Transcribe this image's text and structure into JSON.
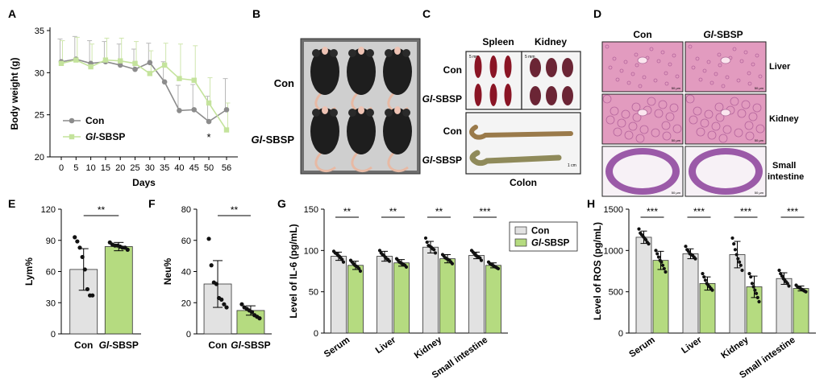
{
  "colors": {
    "con": "#e2e2e2",
    "gl": "#b5db80",
    "con_line": "#8c8c8c",
    "gl_line": "#c4e39c",
    "mouse": "#1e1e1e",
    "spleen": "#8a1525",
    "kidney": "#6b2535",
    "colon": "#9a7a4a",
    "he_pink": "#e29bbf",
    "he_bg": "#f1c8d8",
    "he_purple": "#9b5aa8"
  },
  "panel_letters": {
    "A": "A",
    "B": "B",
    "C": "C",
    "D": "D",
    "E": "E",
    "F": "F",
    "G": "G",
    "H": "H"
  },
  "groups": {
    "con": "Con",
    "gl_prefix": "Gl",
    "gl_suffix": "-SBSP"
  },
  "panel_B": {
    "row_labels": [
      "Con",
      "Gl-SBSP"
    ]
  },
  "panel_C": {
    "spleen": "Spleen",
    "kidney": "Kidney",
    "colon": "Colon",
    "scale": "5 mm",
    "scale_b": "1 cm"
  },
  "panel_D": {
    "col_labels": [
      "Con",
      "Gl-SBSP"
    ],
    "row_labels": [
      "Liver",
      "Kidney",
      "Small intestine"
    ],
    "row3_a": "Small",
    "row3_b": "intestine",
    "scale": "50 μm"
  },
  "chart_data": [
    {
      "id": "A",
      "type": "line",
      "title": "",
      "xlabel": "Days",
      "ylabel": "Body weight (g)",
      "x": [
        0,
        5,
        10,
        15,
        20,
        25,
        30,
        35,
        40,
        45,
        50,
        56
      ],
      "x_ticks": [
        "0",
        "5",
        "10",
        "15",
        "20",
        "25",
        "30",
        "35",
        "40",
        "45",
        "50",
        "56"
      ],
      "ylim": [
        20,
        35
      ],
      "y_ticks": [
        20,
        25,
        30,
        35
      ],
      "series": [
        {
          "name": "Con",
          "values": [
            31.3,
            31.6,
            31.1,
            31.3,
            30.9,
            30.4,
            31.2,
            28.9,
            25.5,
            25.6,
            24.2,
            25.6
          ],
          "sd": [
            2.7,
            2.7,
            2.7,
            2.4,
            2.5,
            2.4,
            2.3,
            2.4,
            3.0,
            3.0,
            3.0,
            3.7
          ]
        },
        {
          "name": "Gl-SBSP",
          "values": [
            31.1,
            31.5,
            30.7,
            31.5,
            31.4,
            31.1,
            29.9,
            30.9,
            29.3,
            29.1,
            26.4,
            23.2
          ],
          "sd": [
            2.7,
            2.7,
            2.7,
            2.6,
            2.7,
            2.6,
            2.7,
            2.6,
            4.1,
            4.1,
            3.0,
            3.2
          ]
        }
      ],
      "annotations": [
        {
          "x": 50,
          "text": "*"
        }
      ],
      "legend": "bottom-left"
    },
    {
      "id": "E",
      "type": "bar",
      "ylabel": "Lym%",
      "ylim": [
        0,
        120
      ],
      "y_ticks": [
        0,
        30,
        60,
        90,
        120
      ],
      "categories": [
        "Con",
        "Gl-SBSP"
      ],
      "values": [
        62,
        84
      ],
      "sd": [
        20,
        4
      ],
      "points": [
        [
          93,
          89,
          83,
          74,
          62,
          43,
          37,
          37
        ],
        [
          88,
          86,
          85,
          85,
          84,
          83,
          83,
          81
        ]
      ],
      "significance": "**"
    },
    {
      "id": "F",
      "type": "bar",
      "ylabel": "Neu%",
      "ylim": [
        0,
        80
      ],
      "y_ticks": [
        0,
        20,
        40,
        60,
        80
      ],
      "categories": [
        "Con",
        "Gl-SBSP"
      ],
      "values": [
        32,
        15
      ],
      "sd": [
        15,
        3
      ],
      "points": [
        [
          61,
          44,
          33,
          32,
          23,
          22,
          19,
          17
        ],
        [
          19,
          17,
          16,
          15,
          14,
          12,
          11,
          10
        ]
      ],
      "significance": "**"
    },
    {
      "id": "G",
      "type": "bar",
      "ylabel": "Level of IL-6 (pg/mL)",
      "ylim": [
        0,
        150
      ],
      "y_ticks": [
        0,
        50,
        100,
        150
      ],
      "categories": [
        "Serum",
        "Liver",
        "Kidney",
        "Small intestine"
      ],
      "series": [
        {
          "name": "Con",
          "values": [
            93,
            93,
            104,
            94
          ],
          "sd": [
            5,
            6,
            7,
            4
          ]
        },
        {
          "name": "Gl-SBSP",
          "values": [
            82,
            85,
            90,
            82
          ],
          "sd": [
            5,
            4,
            5,
            3
          ]
        }
      ],
      "points": [
        [
          [
            99,
            97,
            96,
            94,
            93,
            91,
            89,
            86
          ],
          [
            100,
            97,
            95,
            94,
            92,
            90,
            89,
            87
          ],
          [
            115,
            110,
            106,
            105,
            104,
            102,
            101,
            97
          ],
          [
            100,
            98,
            96,
            94,
            93,
            92,
            91,
            88
          ]
        ],
        [
          [
            88,
            86,
            84,
            82,
            81,
            80,
            78,
            75
          ],
          [
            90,
            88,
            86,
            85,
            84,
            83,
            82,
            80
          ],
          [
            95,
            93,
            91,
            90,
            89,
            88,
            86,
            84
          ],
          [
            86,
            84,
            83,
            82,
            81,
            80,
            79,
            78
          ]
        ]
      ],
      "significance": [
        "**",
        "**",
        "**",
        "***"
      ],
      "legend": "top-right"
    },
    {
      "id": "H",
      "type": "bar",
      "ylabel": "Level of ROS (pg/mL)",
      "ylim": [
        0,
        1500
      ],
      "y_ticks": [
        0,
        500,
        1000,
        1500
      ],
      "categories": [
        "Serum",
        "Liver",
        "Kidney",
        "Small intestine"
      ],
      "series": [
        {
          "name": "Con",
          "values": [
            1160,
            960,
            950,
            660
          ],
          "sd": [
            75,
            60,
            160,
            70
          ]
        },
        {
          "name": "Gl-SBSP",
          "values": [
            880,
            600,
            560,
            540
          ],
          "sd": [
            110,
            80,
            130,
            30
          ]
        }
      ],
      "points": [
        [
          [
            1260,
            1210,
            1190,
            1170,
            1150,
            1130,
            1100,
            1080
          ],
          [
            1050,
            1010,
            990,
            960,
            950,
            940,
            920,
            900
          ],
          [
            1150,
            1080,
            1010,
            950,
            900,
            860,
            820,
            760
          ],
          [
            760,
            720,
            690,
            660,
            640,
            620,
            600,
            570
          ]
        ],
        [
          [
            1000,
            960,
            920,
            880,
            860,
            820,
            780,
            740
          ],
          [
            720,
            680,
            640,
            600,
            580,
            560,
            540,
            520
          ],
          [
            720,
            680,
            600,
            560,
            520,
            480,
            430,
            380
          ],
          [
            580,
            560,
            550,
            540,
            530,
            520,
            510,
            500
          ]
        ]
      ],
      "significance": [
        "***",
        "***",
        "***",
        "***"
      ]
    }
  ]
}
